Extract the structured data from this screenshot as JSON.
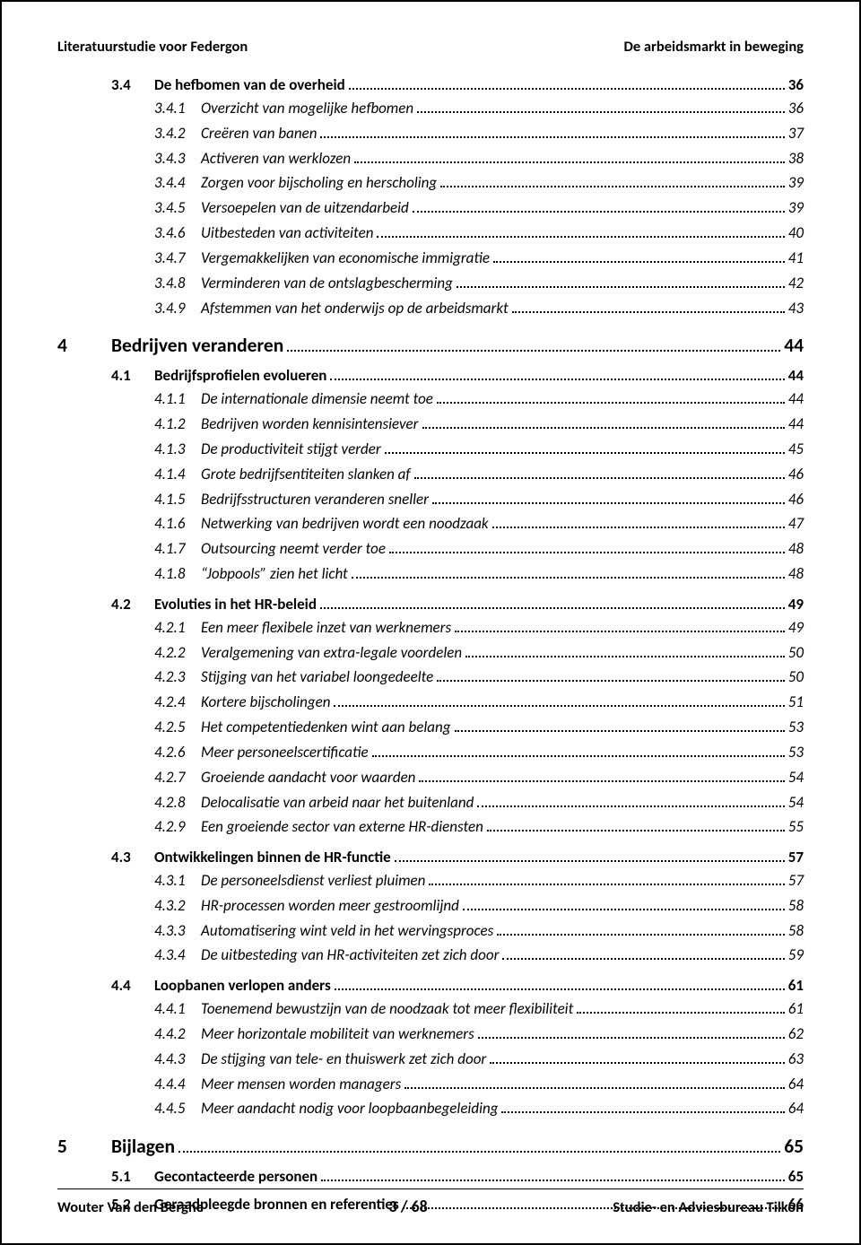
{
  "header": {
    "left": "Literatuurstudie voor Federgon",
    "right": "De arbeidsmarkt in beweging"
  },
  "footer": {
    "left": "Wouter Van den Berghe",
    "center": "3 / 68",
    "right": "Studie- en Adviesbureau Tilkon"
  },
  "toc": [
    {
      "level": 2,
      "num": "3.4",
      "title": "De hefbomen van de overheid",
      "page": "36",
      "cont": true
    },
    {
      "level": 3,
      "num": "3.4.1",
      "title": "Overzicht van mogelijke hefbomen",
      "page": "36"
    },
    {
      "level": 3,
      "num": "3.4.2",
      "title": "Creëren van banen",
      "page": "37"
    },
    {
      "level": 3,
      "num": "3.4.3",
      "title": "Activeren van werklozen",
      "page": "38"
    },
    {
      "level": 3,
      "num": "3.4.4",
      "title": "Zorgen voor bijscholing en herscholing",
      "page": "39"
    },
    {
      "level": 3,
      "num": "3.4.5",
      "title": "Versoepelen van de uitzendarbeid",
      "page": "39"
    },
    {
      "level": 3,
      "num": "3.4.6",
      "title": "Uitbesteden van activiteiten",
      "page": "40"
    },
    {
      "level": 3,
      "num": "3.4.7",
      "title": "Vergemakkelijken van economische immigratie",
      "page": "41"
    },
    {
      "level": 3,
      "num": "3.4.8",
      "title": "Verminderen van de ontslagbescherming",
      "page": "42"
    },
    {
      "level": 3,
      "num": "3.4.9",
      "title": "Afstemmen van het onderwijs op de arbeidsmarkt",
      "page": "43"
    },
    {
      "level": 1,
      "num": "4",
      "title": "Bedrijven veranderen",
      "page": "44"
    },
    {
      "level": 2,
      "num": "4.1",
      "title": "Bedrijfsprofielen evolueren",
      "page": "44"
    },
    {
      "level": 3,
      "num": "4.1.1",
      "title": "De internationale dimensie neemt toe",
      "page": "44"
    },
    {
      "level": 3,
      "num": "4.1.2",
      "title": "Bedrijven worden kennisintensiever",
      "page": "44"
    },
    {
      "level": 3,
      "num": "4.1.3",
      "title": "De productiviteit stijgt verder",
      "page": "45"
    },
    {
      "level": 3,
      "num": "4.1.4",
      "title": "Grote bedrijfsentiteiten slanken af",
      "page": "46"
    },
    {
      "level": 3,
      "num": "4.1.5",
      "title": "Bedrijfsstructuren veranderen sneller",
      "page": "46"
    },
    {
      "level": 3,
      "num": "4.1.6",
      "title": "Netwerking van bedrijven wordt een noodzaak",
      "page": "47"
    },
    {
      "level": 3,
      "num": "4.1.7",
      "title": "Outsourcing neemt verder toe",
      "page": "48"
    },
    {
      "level": 3,
      "num": "4.1.8",
      "title": "“Jobpools” zien het licht",
      "page": "48"
    },
    {
      "level": 2,
      "num": "4.2",
      "title": "Evoluties in het HR-beleid",
      "page": "49"
    },
    {
      "level": 3,
      "num": "4.2.1",
      "title": "Een meer flexibele inzet van werknemers",
      "page": "49"
    },
    {
      "level": 3,
      "num": "4.2.2",
      "title": "Veralgemening van extra-legale voordelen",
      "page": "50"
    },
    {
      "level": 3,
      "num": "4.2.3",
      "title": "Stijging van het variabel loongedeelte",
      "page": "50"
    },
    {
      "level": 3,
      "num": "4.2.4",
      "title": "Kortere bijscholingen",
      "page": "51"
    },
    {
      "level": 3,
      "num": "4.2.5",
      "title": "Het competentiedenken wint aan belang",
      "page": "53"
    },
    {
      "level": 3,
      "num": "4.2.6",
      "title": "Meer personeelscertificatie",
      "page": "53"
    },
    {
      "level": 3,
      "num": "4.2.7",
      "title": "Groeiende aandacht voor waarden",
      "page": "54"
    },
    {
      "level": 3,
      "num": "4.2.8",
      "title": "Delocalisatie van arbeid naar het buitenland",
      "page": "54"
    },
    {
      "level": 3,
      "num": "4.2.9",
      "title": "Een groeiende sector van externe HR-diensten",
      "page": "55"
    },
    {
      "level": 2,
      "num": "4.3",
      "title": "Ontwikkelingen binnen de HR-functie",
      "page": "57"
    },
    {
      "level": 3,
      "num": "4.3.1",
      "title": "De personeelsdienst verliest pluimen",
      "page": "57"
    },
    {
      "level": 3,
      "num": "4.3.2",
      "title": "HR-processen worden meer gestroomlijnd",
      "page": "58"
    },
    {
      "level": 3,
      "num": "4.3.3",
      "title": "Automatisering wint veld in het wervingsproces",
      "page": "58"
    },
    {
      "level": 3,
      "num": "4.3.4",
      "title": "De uitbesteding van HR-activiteiten zet zich door",
      "page": "59"
    },
    {
      "level": 2,
      "num": "4.4",
      "title": "Loopbanen verlopen anders",
      "page": "61"
    },
    {
      "level": 3,
      "num": "4.4.1",
      "title": "Toenemend bewustzijn van de noodzaak tot meer flexibiliteit",
      "page": "61"
    },
    {
      "level": 3,
      "num": "4.4.2",
      "title": "Meer horizontale mobiliteit van werknemers",
      "page": "62"
    },
    {
      "level": 3,
      "num": "4.4.3",
      "title": "De stijging van tele- en thuiswerk zet zich door",
      "page": "63"
    },
    {
      "level": 3,
      "num": "4.4.4",
      "title": "Meer mensen worden managers",
      "page": "64"
    },
    {
      "level": 3,
      "num": "4.4.5",
      "title": "Meer aandacht nodig voor loopbaanbegeleiding",
      "page": "64"
    },
    {
      "level": 1,
      "num": "5",
      "title": "Bijlagen",
      "page": "65"
    },
    {
      "level": 2,
      "num": "5.1",
      "title": "Gecontacteerde personen",
      "page": "65"
    },
    {
      "level": 2,
      "num": "5.2",
      "title": "Geraadpleegde bronnen en referenties",
      "page": "66"
    }
  ]
}
